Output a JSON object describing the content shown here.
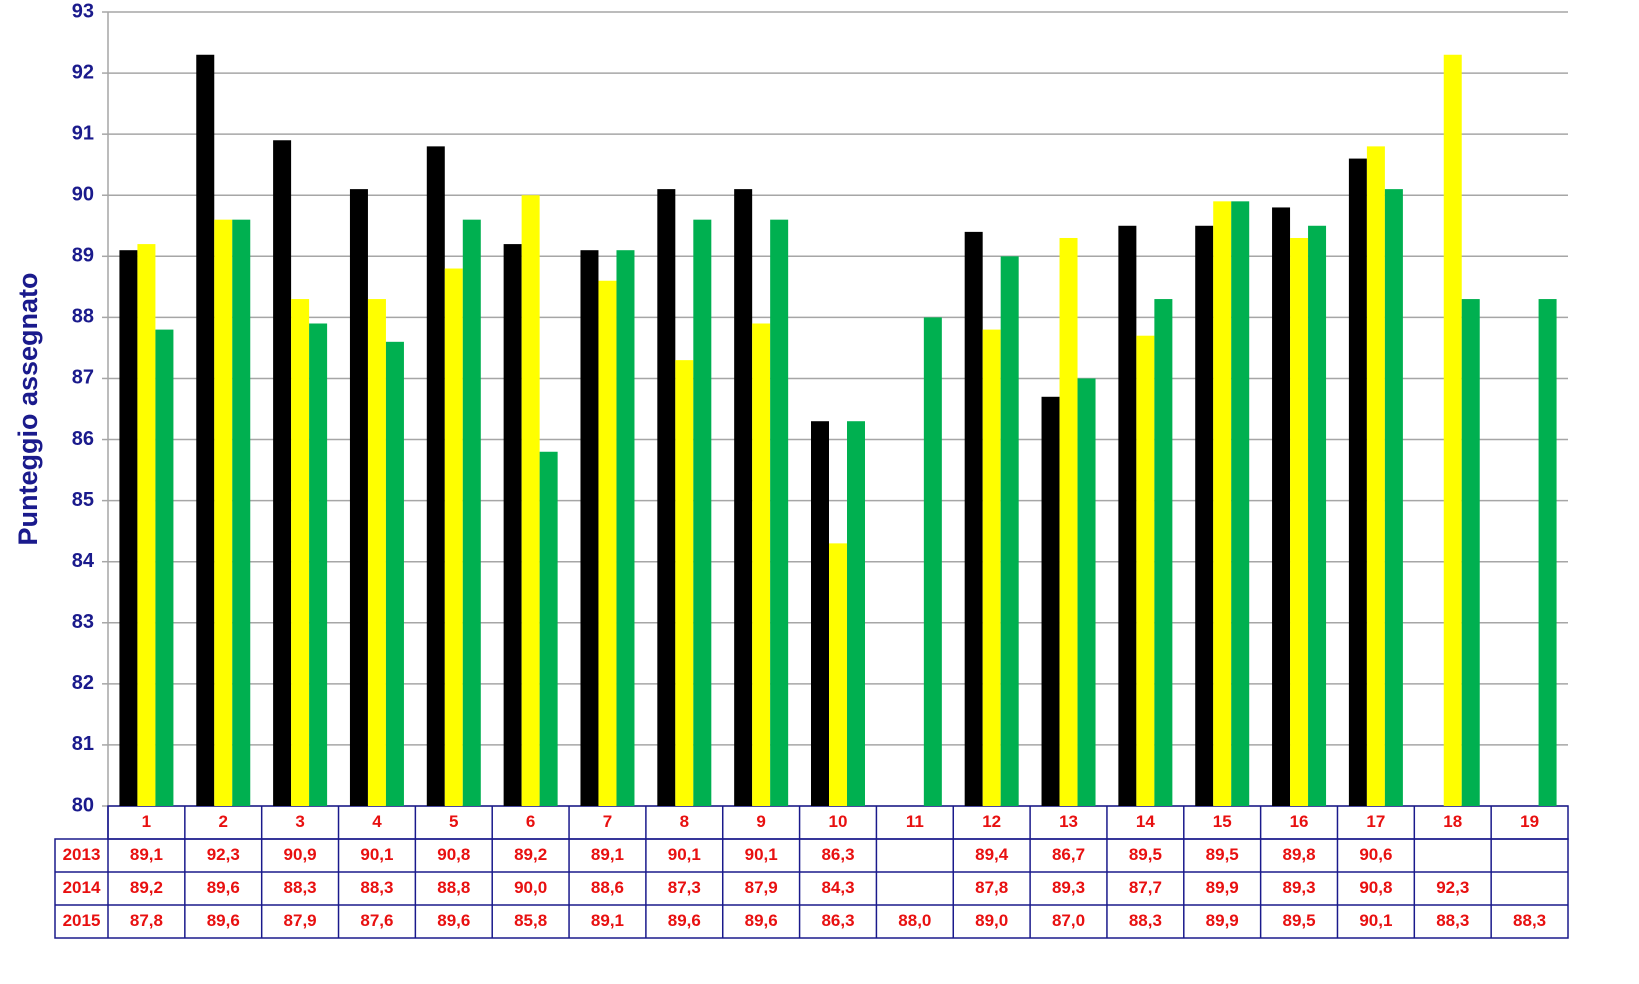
{
  "chart_data": {
    "type": "bar",
    "y_label": "Punteggio assegnato",
    "categories": [
      "1",
      "2",
      "3",
      "4",
      "5",
      "6",
      "7",
      "8",
      "9",
      "10",
      "11",
      "12",
      "13",
      "14",
      "15",
      "16",
      "17",
      "18",
      "19"
    ],
    "series": [
      {
        "name": "2013",
        "color": "#000000",
        "values": [
          89.1,
          92.3,
          90.9,
          90.1,
          90.8,
          89.2,
          89.1,
          90.1,
          90.1,
          86.3,
          null,
          89.4,
          86.7,
          89.5,
          89.5,
          89.8,
          90.6,
          null,
          null
        ],
        "value_labels": [
          "89,1",
          "92,3",
          "90,9",
          "90,1",
          "90,8",
          "89,2",
          "89,1",
          "90,1",
          "90,1",
          "86,3",
          null,
          "89,4",
          "86,7",
          "89,5",
          "89,5",
          "89,8",
          "90,6",
          null,
          null
        ]
      },
      {
        "name": "2014",
        "color": "#ffff00",
        "values": [
          89.2,
          89.6,
          88.3,
          88.3,
          88.8,
          90.0,
          88.6,
          87.3,
          87.9,
          84.3,
          null,
          87.8,
          89.3,
          87.7,
          89.9,
          89.3,
          90.8,
          92.3,
          null
        ],
        "value_labels": [
          "89,2",
          "89,6",
          "88,3",
          "88,3",
          "88,8",
          "90,0",
          "88,6",
          "87,3",
          "87,9",
          "84,3",
          null,
          "87,8",
          "89,3",
          "87,7",
          "89,9",
          "89,3",
          "90,8",
          "92,3",
          null
        ]
      },
      {
        "name": "2015",
        "color": "#00b050",
        "values": [
          87.8,
          89.6,
          87.9,
          87.6,
          89.6,
          85.8,
          89.1,
          89.6,
          89.6,
          86.3,
          88.0,
          89.0,
          87.0,
          88.3,
          89.9,
          89.5,
          90.1,
          88.3,
          88.3
        ],
        "value_labels": [
          "87,8",
          "89,6",
          "87,9",
          "87,6",
          "89,6",
          "85,8",
          "89,1",
          "89,6",
          "89,6",
          "86,3",
          "88,0",
          "89,0",
          "87,0",
          "88,3",
          "89,9",
          "89,5",
          "90,1",
          "88,3",
          "88,3"
        ]
      }
    ],
    "ylim": [
      80,
      93
    ],
    "yticks": [
      80,
      81,
      82,
      83,
      84,
      85,
      86,
      87,
      88,
      89,
      90,
      91,
      92,
      93
    ],
    "grid": true
  }
}
